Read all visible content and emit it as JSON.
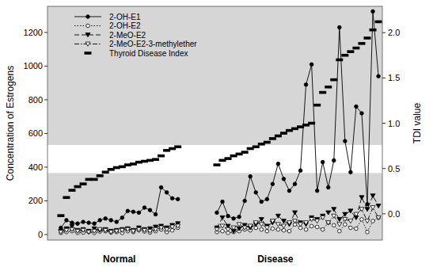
{
  "chart_data": {
    "type": "line",
    "axis_label_y": "Concentration of Estrogens",
    "axis_label_y2": "TDI value",
    "x": [
      1,
      2,
      3,
      4,
      5,
      6,
      7,
      8,
      9,
      10,
      11,
      12,
      13,
      14,
      15,
      16,
      17,
      18,
      19,
      20,
      21,
      22,
      25,
      29,
      30,
      31,
      32,
      33,
      34,
      35,
      36,
      37,
      38,
      39,
      40,
      41,
      42,
      43,
      44,
      45,
      46,
      47,
      48,
      49,
      50,
      51,
      52,
      53,
      54,
      55,
      56,
      57,
      58
    ],
    "xlim": [
      -1.4,
      58.7
    ],
    "xticks": [
      {
        "value": 11.5,
        "label": "Normal"
      },
      {
        "value": 39.5,
        "label": "Disease"
      }
    ],
    "ylim": [
      -33,
      1355
    ],
    "yticks": [
      0,
      200,
      400,
      600,
      800,
      1000,
      1200
    ],
    "y2lim": [
      -0.29,
      2.29
    ],
    "y2ticks": [
      {
        "value": 0,
        "label": "0.0"
      },
      {
        "value": 0.5,
        "label": "0.5"
      },
      {
        "value": 1,
        "label": "1.0"
      },
      {
        "value": 1.5,
        "label": "1.5"
      },
      {
        "value": 2,
        "label": "2.0"
      }
    ],
    "band": [
      0.45,
      0.76
    ],
    "grid": false,
    "legend": "top-left",
    "series": [
      {
        "name": "2-OH-E1",
        "color": "#000000",
        "marker": "circle",
        "line_style": "solid",
        "values": [
          40,
          85,
          70,
          65,
          75,
          70,
          65,
          85,
          95,
          85,
          75,
          100,
          140,
          135,
          130,
          160,
          145,
          120,
          280,
          250,
          215,
          210,
          null,
          130,
          195,
          110,
          95,
          105,
          200,
          345,
          250,
          195,
          210,
          300,
          420,
          330,
          260,
          300,
          380,
          890,
          1010,
          260,
          430,
          280,
          440,
          1230,
          555,
          370,
          760,
          720,
          180,
          1325,
          940
        ]
      },
      {
        "name": "2-OH-E2",
        "color": "#000000",
        "marker": "open-circle",
        "line_style": "dotted",
        "values": [
          10,
          15,
          20,
          10,
          12,
          15,
          10,
          18,
          20,
          12,
          15,
          10,
          20,
          15,
          25,
          18,
          12,
          20,
          30,
          15,
          25,
          40,
          null,
          15,
          20,
          10,
          15,
          20,
          30,
          25,
          40,
          30,
          20,
          35,
          30,
          25,
          20,
          60,
          40,
          30,
          50,
          45,
          30,
          70,
          55,
          20,
          60,
          40,
          35,
          90,
          15,
          80,
          100
        ]
      },
      {
        "name": "2-MeO-E2",
        "color": "#000000",
        "marker": "triangle-down",
        "line_style": "dashed",
        "values": [
          20,
          35,
          50,
          25,
          30,
          20,
          35,
          25,
          30,
          20,
          25,
          30,
          35,
          25,
          40,
          30,
          35,
          45,
          50,
          40,
          55,
          65,
          null,
          40,
          100,
          50,
          20,
          35,
          55,
          40,
          60,
          90,
          50,
          70,
          110,
          80,
          60,
          130,
          70,
          60,
          100,
          90,
          110,
          130,
          150,
          90,
          120,
          140,
          100,
          220,
          150,
          230,
          170
        ]
      },
      {
        "name": "2-MeO-E2-3-methylether",
        "color": "#000000",
        "marker": "open-triangle-down",
        "line_style": "dashdot",
        "values": [
          15,
          25,
          30,
          20,
          25,
          15,
          20,
          30,
          25,
          15,
          20,
          25,
          30,
          20,
          30,
          25,
          20,
          30,
          40,
          30,
          45,
          50,
          null,
          30,
          50,
          30,
          40,
          60,
          40,
          50,
          70,
          60,
          40,
          80,
          60,
          50,
          70,
          80,
          60,
          70,
          90,
          80,
          100,
          70,
          110,
          60,
          90,
          80,
          120,
          150,
          80,
          160,
          100
        ]
      },
      {
        "name": "Thyroid Disease Index",
        "color": "#000000",
        "marker": "dash",
        "line_style": "none",
        "axis": "y2",
        "values": [
          -0.02,
          0.18,
          0.26,
          0.3,
          0.33,
          0.38,
          0.38,
          0.42,
          0.46,
          0.49,
          0.51,
          0.52,
          0.54,
          0.55,
          0.57,
          0.58,
          0.59,
          0.6,
          0.64,
          0.7,
          0.72,
          0.74,
          null,
          0.54,
          0.59,
          0.61,
          0.64,
          0.66,
          0.68,
          0.72,
          0.74,
          0.77,
          0.79,
          0.83,
          0.86,
          0.89,
          0.92,
          0.94,
          0.96,
          0.98,
          1.0,
          1.2,
          1.34,
          1.4,
          1.48,
          1.7,
          1.75,
          1.79,
          1.83,
          1.88,
          1.94,
          2.03,
          2.12
        ]
      }
    ]
  }
}
